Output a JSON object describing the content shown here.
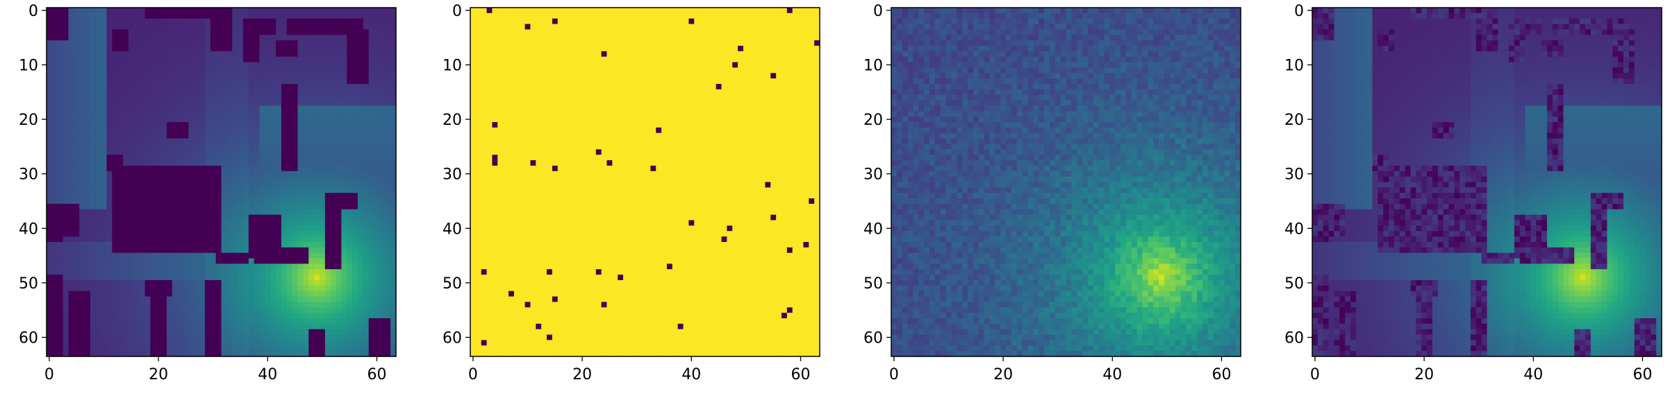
{
  "chart_data": [
    {
      "type": "heatmap",
      "title": "",
      "xlabel": "",
      "ylabel": "",
      "shape": [
        64,
        64
      ],
      "colormap": "viridis",
      "xlim": [
        0,
        63
      ],
      "ylim": [
        63,
        0
      ],
      "xticks": [
        0,
        20,
        40,
        60
      ],
      "yticks": [
        0,
        10,
        20,
        30,
        40,
        50,
        60
      ],
      "xtick_labels": [
        "0",
        "20",
        "40",
        "60"
      ],
      "ytick_labels": [
        "0",
        "10",
        "20",
        "30",
        "40",
        "50",
        "60"
      ],
      "peak": {
        "x": 49,
        "y": 49
      },
      "content": "radio map with dark building footprints; bright signal source near (49, 49)"
    },
    {
      "type": "heatmap",
      "title": "",
      "xlabel": "",
      "ylabel": "",
      "shape": [
        64,
        64
      ],
      "colormap": "viridis",
      "xlim": [
        0,
        63
      ],
      "ylim": [
        63,
        0
      ],
      "xticks": [
        0,
        20,
        40,
        60
      ],
      "yticks": [
        0,
        10,
        20,
        30,
        40,
        50,
        60
      ],
      "xtick_labels": [
        "0",
        "20",
        "40",
        "60"
      ],
      "ytick_labels": [
        "0",
        "10",
        "20",
        "30",
        "40",
        "50",
        "60"
      ],
      "background_value": "high",
      "sample_points": [
        [
          3,
          0
        ],
        [
          58,
          0
        ],
        [
          15,
          2
        ],
        [
          40,
          2
        ],
        [
          10,
          3
        ],
        [
          24,
          8
        ],
        [
          63,
          6
        ],
        [
          49,
          7
        ],
        [
          48,
          10
        ],
        [
          55,
          12
        ],
        [
          45,
          14
        ],
        [
          4,
          21
        ],
        [
          34,
          22
        ],
        [
          23,
          26
        ],
        [
          4,
          27
        ],
        [
          4,
          28
        ],
        [
          11,
          28
        ],
        [
          25,
          28
        ],
        [
          15,
          29
        ],
        [
          33,
          29
        ],
        [
          54,
          32
        ],
        [
          62,
          35
        ],
        [
          55,
          38
        ],
        [
          40,
          39
        ],
        [
          47,
          40
        ],
        [
          46,
          42
        ],
        [
          61,
          43
        ],
        [
          58,
          44
        ],
        [
          36,
          47
        ],
        [
          2,
          48
        ],
        [
          14,
          48
        ],
        [
          23,
          48
        ],
        [
          27,
          49
        ],
        [
          7,
          52
        ],
        [
          15,
          53
        ],
        [
          10,
          54
        ],
        [
          24,
          54
        ],
        [
          58,
          55
        ],
        [
          57,
          56
        ],
        [
          12,
          58
        ],
        [
          38,
          58
        ],
        [
          14,
          60
        ],
        [
          2,
          61
        ]
      ]
    },
    {
      "type": "heatmap",
      "title": "",
      "xlabel": "",
      "ylabel": "",
      "shape": [
        64,
        64
      ],
      "colormap": "viridis",
      "xlim": [
        0,
        63
      ],
      "ylim": [
        63,
        0
      ],
      "xticks": [
        0,
        20,
        40,
        60
      ],
      "yticks": [
        0,
        10,
        20,
        30,
        40,
        50,
        60
      ],
      "xtick_labels": [
        "0",
        "20",
        "40",
        "60"
      ],
      "ytick_labels": [
        "0",
        "10",
        "20",
        "30",
        "40",
        "50",
        "60"
      ],
      "peak": {
        "x": 49,
        "y": 49
      },
      "content": "noisy radial field centered near (49, 49) with sparse dark sample pixels"
    },
    {
      "type": "heatmap",
      "title": "",
      "xlabel": "",
      "ylabel": "",
      "shape": [
        64,
        64
      ],
      "colormap": "viridis",
      "xlim": [
        0,
        63
      ],
      "ylim": [
        63,
        0
      ],
      "xticks": [
        0,
        20,
        40,
        60
      ],
      "yticks": [
        0,
        10,
        20,
        30,
        40,
        50,
        60
      ],
      "xtick_labels": [
        "0",
        "20",
        "40",
        "60"
      ],
      "ytick_labels": [
        "0",
        "10",
        "20",
        "30",
        "40",
        "50",
        "60"
      ],
      "peak": {
        "x": 49,
        "y": 49
      },
      "content": "reconstructed radio map with building footprints; bright source near (49, 49)"
    }
  ]
}
